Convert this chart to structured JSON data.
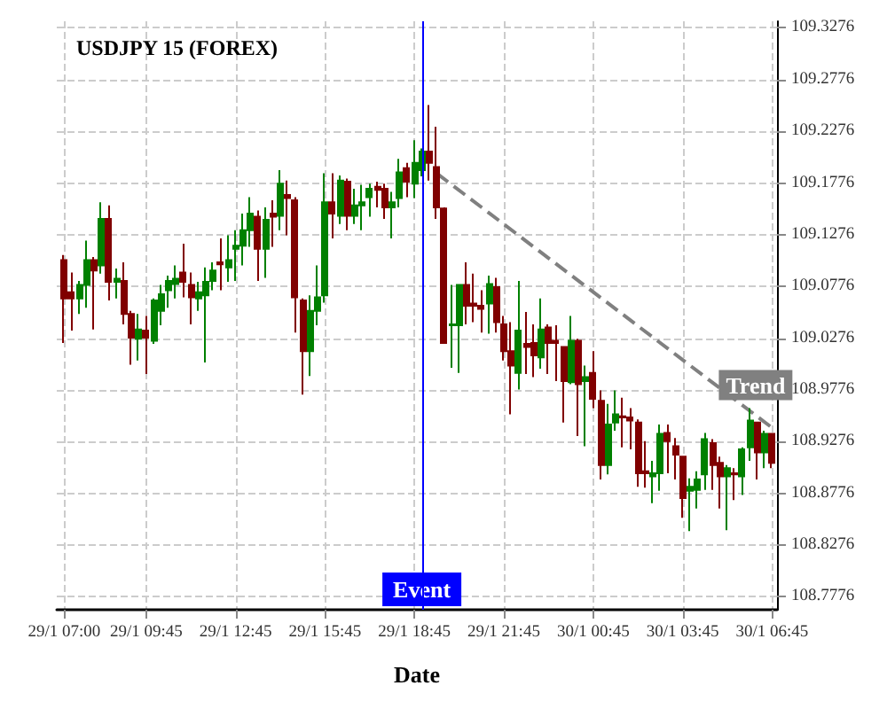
{
  "chart_data": {
    "type": "candlestick",
    "title": "USDJPY 15 (FOREX)",
    "xlabel": "Date",
    "x": [
      "--01-29T07:00",
      "--01-29T07:15",
      "--01-29T07:30",
      "--01-29T07:45",
      "--01-29T08:00",
      "--01-29T08:15",
      "--01-29T08:30",
      "--01-29T08:45",
      "--01-29T09:00",
      "--01-29T09:15",
      "--01-29T09:30",
      "--01-29T09:45",
      "--01-29T10:00",
      "--01-29T10:15",
      "--01-29T10:30",
      "--01-29T10:45",
      "--01-29T11:00",
      "--01-29T11:15",
      "--01-29T11:30",
      "--01-29T11:45",
      "--01-29T12:00",
      "--01-29T12:15",
      "--01-29T12:30",
      "--01-29T12:45",
      "--01-29T13:00",
      "--01-29T13:15",
      "--01-29T13:30",
      "--01-29T13:45",
      "--01-29T14:00",
      "--01-29T14:15",
      "--01-29T14:30",
      "--01-29T14:45",
      "--01-29T15:00",
      "--01-29T15:15",
      "--01-29T15:30",
      "--01-29T15:45",
      "--01-29T16:00",
      "--01-29T16:15",
      "--01-29T16:30",
      "--01-29T16:45",
      "--01-29T17:00",
      "--01-29T17:15",
      "--01-29T17:30",
      "--01-29T17:45",
      "--01-29T18:00",
      "--01-29T18:15",
      "--01-29T18:30",
      "--01-29T18:45",
      "--01-29T19:00",
      "--01-29T19:15",
      "--01-29T19:30",
      "--01-29T19:45",
      "--01-29T20:00",
      "--01-29T20:15",
      "--01-29T20:30",
      "--01-29T20:45",
      "--01-29T21:00",
      "--01-29T21:15",
      "--01-29T21:30",
      "--01-29T21:45",
      "--01-29T22:00",
      "--01-29T22:15",
      "--01-29T22:30",
      "--01-29T22:45",
      "--01-29T23:00",
      "--01-29T23:15",
      "--01-29T23:30",
      "--01-29T23:45",
      "--01-30T00:00",
      "--01-30T00:15",
      "--01-30T00:30",
      "--01-30T00:45",
      "--01-30T01:00",
      "--01-30T01:15",
      "--01-30T01:30",
      "--01-30T01:45",
      "--01-30T02:00",
      "--01-30T02:15",
      "--01-30T02:30",
      "--01-30T02:45",
      "--01-30T03:00",
      "--01-30T03:15",
      "--01-30T03:30",
      "--01-30T03:45",
      "--01-30T04:00",
      "--01-30T04:15",
      "--01-30T04:30",
      "--01-30T04:45",
      "--01-30T05:00",
      "--01-30T05:15",
      "--01-30T05:30",
      "--01-30T05:45",
      "--01-30T06:00",
      "--01-30T06:15",
      "--01-30T06:30",
      "--01-30T06:45"
    ],
    "series": [
      {
        "ohlc": [
          [
            109.103,
            109.108,
            109.023,
            109.066
          ],
          [
            109.072,
            109.091,
            109.035,
            109.066
          ],
          [
            109.066,
            109.083,
            109.051,
            109.079
          ],
          [
            109.079,
            109.122,
            109.057,
            109.103
          ],
          [
            109.103,
            109.106,
            109.036,
            109.093
          ],
          [
            109.098,
            109.159,
            109.09,
            109.143
          ],
          [
            109.143,
            109.156,
            109.064,
            109.082
          ],
          [
            109.082,
            109.095,
            109.066,
            109.085
          ],
          [
            109.083,
            109.101,
            109.041,
            109.051
          ],
          [
            109.051,
            109.054,
            109.002,
            109.028
          ],
          [
            109.027,
            109.051,
            109.006,
            109.036
          ],
          [
            109.035,
            109.049,
            108.993,
            109.028
          ],
          [
            109.025,
            109.066,
            109.022,
            109.064
          ],
          [
            109.054,
            109.079,
            109.04,
            109.07
          ],
          [
            109.074,
            109.088,
            109.057,
            109.083
          ],
          [
            109.08,
            109.098,
            109.066,
            109.085
          ],
          [
            109.091,
            109.119,
            109.067,
            109.082
          ],
          [
            109.079,
            109.091,
            109.041,
            109.067
          ],
          [
            109.066,
            109.082,
            109.054,
            109.072
          ],
          [
            109.069,
            109.096,
            109.004,
            109.082
          ],
          [
            109.083,
            109.101,
            109.074,
            109.093
          ],
          [
            109.101,
            109.124,
            109.074,
            109.099
          ],
          [
            109.096,
            109.127,
            109.082,
            109.103
          ],
          [
            109.114,
            109.132,
            109.083,
            109.117
          ],
          [
            109.117,
            109.148,
            109.098,
            109.132
          ],
          [
            109.132,
            109.164,
            109.116,
            109.148
          ],
          [
            109.145,
            109.151,
            109.083,
            109.114
          ],
          [
            109.114,
            109.154,
            109.086,
            109.142
          ],
          [
            109.148,
            109.161,
            109.116,
            109.145
          ],
          [
            109.146,
            109.19,
            109.132,
            109.177
          ],
          [
            109.166,
            109.18,
            109.127,
            109.163
          ],
          [
            109.161,
            109.164,
            109.033,
            109.067
          ],
          [
            109.064,
            109.066,
            108.973,
            109.015
          ],
          [
            109.015,
            109.069,
            108.991,
            109.054
          ],
          [
            109.054,
            109.098,
            109.04,
            109.067
          ],
          [
            109.069,
            109.187,
            109.062,
            109.159
          ],
          [
            109.159,
            109.187,
            109.124,
            109.148
          ],
          [
            109.146,
            109.185,
            109.138,
            109.18
          ],
          [
            109.179,
            109.182,
            109.132,
            109.146
          ],
          [
            109.146,
            109.172,
            109.138,
            109.156
          ],
          [
            109.156,
            109.176,
            109.132,
            109.159
          ],
          [
            109.164,
            109.177,
            109.145,
            109.172
          ],
          [
            109.174,
            109.179,
            109.154,
            109.171
          ],
          [
            109.172,
            109.177,
            109.143,
            109.154
          ],
          [
            109.154,
            109.169,
            109.124,
            109.159
          ],
          [
            109.163,
            109.201,
            109.154,
            109.188
          ],
          [
            109.192,
            109.197,
            109.164,
            109.179
          ],
          [
            109.177,
            109.219,
            109.163,
            109.197
          ],
          [
            109.19,
            109.211,
            109.184,
            109.208
          ],
          [
            109.208,
            109.253,
            109.18,
            109.197
          ],
          [
            109.193,
            109.232,
            109.143,
            109.154
          ],
          [
            109.153,
            109.154,
            109.022,
            109.023
          ],
          [
            109.04,
            109.079,
            108.999,
            109.041
          ],
          [
            109.04,
            109.08,
            108.994,
            109.079
          ],
          [
            109.079,
            109.101,
            109.041,
            109.059
          ],
          [
            109.061,
            109.09,
            109.043,
            109.059
          ],
          [
            109.059,
            109.074,
            109.033,
            109.056
          ],
          [
            109.061,
            109.088,
            109.032,
            109.08
          ],
          [
            109.077,
            109.086,
            109.033,
            109.043
          ],
          [
            109.041,
            109.049,
            109.006,
            109.015
          ],
          [
            109.015,
            109.043,
            108.954,
            109.001
          ],
          [
            108.994,
            109.083,
            108.978,
            109.035
          ],
          [
            109.022,
            109.053,
            108.993,
            109.019
          ],
          [
            109.023,
            109.041,
            108.99,
            109.011
          ],
          [
            109.009,
            109.066,
            108.998,
            109.036
          ],
          [
            109.038,
            109.041,
            108.993,
            109.023
          ],
          [
            109.025,
            109.04,
            108.986,
            109.023
          ],
          [
            109.019,
            109.02,
            108.946,
            108.986
          ],
          [
            108.985,
            109.049,
            108.983,
            109.025
          ],
          [
            109.025,
            109.027,
            108.933,
            108.983
          ],
          [
            108.986,
            109.001,
            108.923,
            108.99
          ],
          [
            108.994,
            109.015,
            108.96,
            108.969
          ],
          [
            108.967,
            108.977,
            108.891,
            108.905
          ],
          [
            108.905,
            108.964,
            108.896,
            108.944
          ],
          [
            108.946,
            108.977,
            108.938,
            108.954
          ],
          [
            108.952,
            108.97,
            108.922,
            108.951
          ],
          [
            108.951,
            108.96,
            108.92,
            108.948
          ],
          [
            108.946,
            108.949,
            108.884,
            108.897
          ],
          [
            108.899,
            108.928,
            108.883,
            108.897
          ],
          [
            108.894,
            108.909,
            108.868,
            108.897
          ],
          [
            108.897,
            108.944,
            108.88,
            108.935
          ],
          [
            108.936,
            108.944,
            108.897,
            108.928
          ],
          [
            108.923,
            108.931,
            108.891,
            108.915
          ],
          [
            108.913,
            108.913,
            108.854,
            108.873
          ],
          [
            108.88,
            108.892,
            108.841,
            108.884
          ],
          [
            108.881,
            108.899,
            108.863,
            108.891
          ],
          [
            108.896,
            108.936,
            108.881,
            108.93
          ],
          [
            108.926,
            108.93,
            108.881,
            108.905
          ],
          [
            108.907,
            108.913,
            108.863,
            108.894
          ],
          [
            108.894,
            108.905,
            108.842,
            108.902
          ],
          [
            108.897,
            108.902,
            108.871,
            108.896
          ],
          [
            108.894,
            108.922,
            108.876,
            108.92
          ],
          [
            108.922,
            108.96,
            108.909,
            108.948
          ],
          [
            108.946,
            108.946,
            108.891,
            108.917
          ],
          [
            108.917,
            108.938,
            108.902,
            108.935
          ],
          [
            108.935,
            108.935,
            108.902,
            108.907
          ]
        ],
        "colors": [
          "#800000",
          "#800000",
          "#008000",
          "#008000",
          "#800000",
          "#008000",
          "#800000",
          "#008000",
          "#800000",
          "#800000",
          "#008000",
          "#800000",
          "#008000",
          "#008000",
          "#008000",
          "#008000",
          "#800000",
          "#800000",
          "#008000",
          "#008000",
          "#008000",
          "#800000",
          "#008000",
          "#008000",
          "#008000",
          "#008000",
          "#800000",
          "#008000",
          "#800000",
          "#008000",
          "#800000",
          "#800000",
          "#800000",
          "#008000",
          "#008000",
          "#008000",
          "#800000",
          "#008000",
          "#800000",
          "#008000",
          "#008000",
          "#008000",
          "#800000",
          "#800000",
          "#008000",
          "#008000",
          "#800000",
          "#008000",
          "#008000",
          "#800000",
          "#800000",
          "#800000",
          "#008000",
          "#008000",
          "#800000",
          "#800000",
          "#800000",
          "#008000",
          "#800000",
          "#800000",
          "#800000",
          "#008000",
          "#800000",
          "#800000",
          "#008000",
          "#800000",
          "#800000",
          "#800000",
          "#008000",
          "#800000",
          "#008000",
          "#800000",
          "#800000",
          "#008000",
          "#008000",
          "#800000",
          "#800000",
          "#800000",
          "#800000",
          "#008000",
          "#008000",
          "#800000",
          "#800000",
          "#800000",
          "#008000",
          "#008000",
          "#008000",
          "#800000",
          "#800000",
          "#008000",
          "#800000",
          "#008000",
          "#008000",
          "#800000",
          "#008000",
          "#800000"
        ]
      },
      {
        "type": "line",
        "name": "Trend",
        "x": [
          "--01-29T19:30",
          "--01-30T06:45"
        ],
        "values": [
          109.187,
          108.941
        ],
        "color": "#808080",
        "line_style": "dashed"
      }
    ],
    "xlim": [
      "--01-29T06:45",
      "--01-30T06:55"
    ],
    "xticks": [
      {
        "value": "--01-29T07:00",
        "label": "29/1 07:00"
      },
      {
        "value": "--01-29T09:45",
        "label": "29/1 09:45"
      },
      {
        "value": "--01-29T12:45",
        "label": "29/1 12:45"
      },
      {
        "value": "--01-29T15:45",
        "label": "29/1 15:45"
      },
      {
        "value": "--01-29T18:45",
        "label": "29/1 18:45"
      },
      {
        "value": "--01-29T21:45",
        "label": "29/1 21:45"
      },
      {
        "value": "--01-30T00:45",
        "label": "30/1 00:45"
      },
      {
        "value": "--01-30T03:45",
        "label": "30/1 03:45"
      },
      {
        "value": "--01-30T06:45",
        "label": "30/1 06:45"
      }
    ],
    "ylim": [
      108.765,
      109.334
    ],
    "yticks": [
      108.7776,
      108.8276,
      108.8776,
      108.9276,
      108.9776,
      109.0276,
      109.0776,
      109.1276,
      109.1776,
      109.2276,
      109.2776,
      109.3276
    ],
    "ref_lines": [
      {
        "axis": "x",
        "value": "--01-29T19:00",
        "label": "Event",
        "color": "#0000ff"
      }
    ],
    "grid": true,
    "legend": false
  }
}
